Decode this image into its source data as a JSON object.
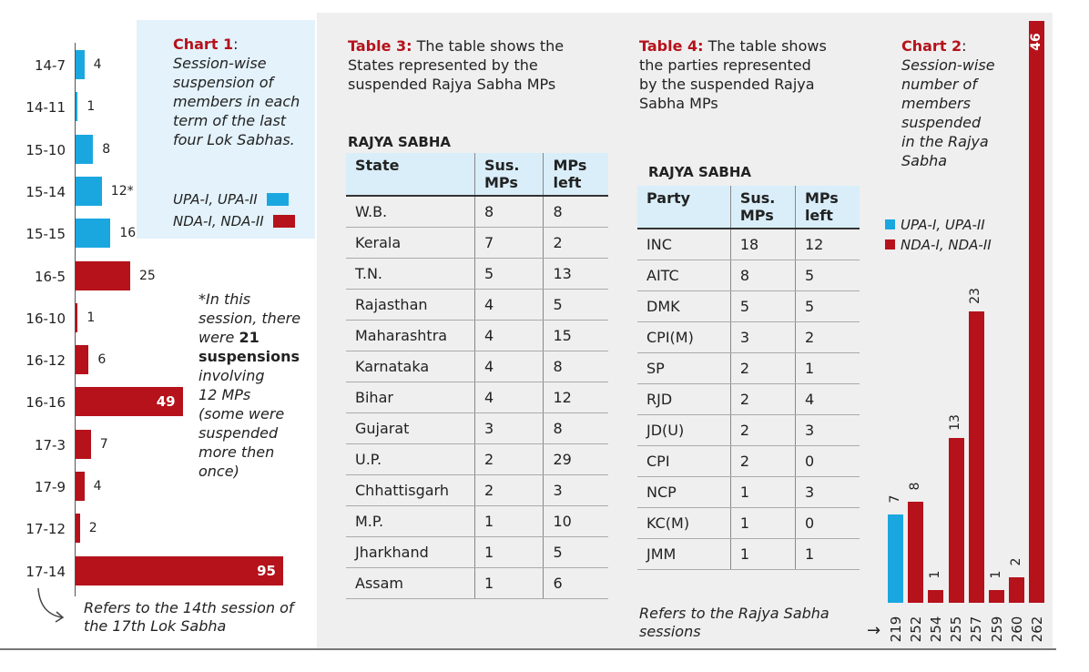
{
  "colors": {
    "upa": "#1aa7e0",
    "nda": "#b5121b"
  },
  "chart1": {
    "caption_title": "Chart 1",
    "caption_colon": ":",
    "caption_lines": [
      "Session-wise",
      "suspension of",
      "members in each",
      "term of the last",
      "four Lok Sabhas."
    ],
    "legend": [
      "UPA-I, UPA-II",
      "NDA-I, NDA-II"
    ],
    "note_lines": [
      "*In this",
      "session, there",
      "were ",
      "21",
      "suspensions",
      "involving",
      "12 MPs",
      "(some were",
      "suspended",
      "more then",
      "once)"
    ],
    "footnote_lines": [
      "Refers to the 14th session of",
      "the 17th Lok Sabha"
    ]
  },
  "chart2": {
    "caption_title": "Chart 2",
    "caption_colon": ":",
    "caption_lines": [
      "Session-wise",
      "number of",
      "members",
      "suspended",
      "in the Rajya",
      "Sabha"
    ],
    "legend": [
      "UPA-I, UPA-II",
      "NDA-I, NDA-II"
    ]
  },
  "table3": {
    "title": "Table 3:",
    "caption_lines": [
      "The table shows the",
      "States represented by the",
      "suspended Rajya Sabha MPs"
    ],
    "section": "RAJYA SABHA",
    "headers": [
      "State",
      "Sus. MPs",
      "MPs left"
    ],
    "rows": [
      [
        "W.B.",
        "8",
        "8"
      ],
      [
        "Kerala",
        "7",
        "2"
      ],
      [
        "T.N.",
        "5",
        "13"
      ],
      [
        "Rajasthan",
        "4",
        "5"
      ],
      [
        "Maharashtra",
        "4",
        "15"
      ],
      [
        "Karnataka",
        "4",
        "8"
      ],
      [
        "Bihar",
        "4",
        "12"
      ],
      [
        "Gujarat",
        "3",
        "8"
      ],
      [
        "U.P.",
        "2",
        "29"
      ],
      [
        "Chhattisgarh",
        "2",
        "3"
      ],
      [
        "M.P.",
        "1",
        "10"
      ],
      [
        "Jharkhand",
        "1",
        "5"
      ],
      [
        "Assam",
        "1",
        "6"
      ]
    ]
  },
  "table4": {
    "title": "Table 4:",
    "caption_lines": [
      "The table shows",
      "the parties represented",
      "by the suspended Rajya",
      "Sabha MPs"
    ],
    "section": "RAJYA SABHA",
    "headers": [
      "Party",
      "Sus. MPs",
      "MPs left"
    ],
    "rows": [
      [
        "INC",
        "18",
        "12"
      ],
      [
        "AITC",
        "8",
        "5"
      ],
      [
        "DMK",
        "5",
        "5"
      ],
      [
        "CPI(M)",
        "3",
        "2"
      ],
      [
        "SP",
        "2",
        "1"
      ],
      [
        "RJD",
        "2",
        "4"
      ],
      [
        "JD(U)",
        "2",
        "3"
      ],
      [
        "CPI",
        "2",
        "0"
      ],
      [
        "NCP",
        "1",
        "3"
      ],
      [
        "KC(M)",
        "1",
        "0"
      ],
      [
        "JMM",
        "1",
        "1"
      ]
    ],
    "footnote_lines": [
      "Refers to the Rajya Sabha",
      "sessions"
    ]
  },
  "chart_data": [
    {
      "type": "bar",
      "orientation": "horizontal",
      "categories": [
        "14-7",
        "14-11",
        "15-10",
        "15-14",
        "15-15",
        "16-5",
        "16-10",
        "16-12",
        "16-16",
        "17-3",
        "17-9",
        "17-12",
        "17-14"
      ],
      "values": [
        4,
        1,
        8,
        12,
        16,
        25,
        1,
        6,
        49,
        7,
        4,
        2,
        95
      ],
      "labels": [
        "4",
        "1",
        "8",
        "12*",
        "16",
        "25",
        "1",
        "6",
        "49",
        "7",
        "4",
        "2",
        "95"
      ],
      "group": [
        "UPA",
        "UPA",
        "UPA",
        "UPA",
        "UPA",
        "NDA",
        "NDA",
        "NDA",
        "NDA",
        "NDA",
        "NDA",
        "NDA",
        "NDA"
      ],
      "title": "Chart 1"
    },
    {
      "type": "bar",
      "orientation": "vertical",
      "categories": [
        "219",
        "252",
        "254",
        "255",
        "257",
        "259",
        "260",
        "262"
      ],
      "values": [
        7,
        8,
        1,
        13,
        23,
        1,
        2,
        46
      ],
      "labels": [
        "7",
        "8",
        "1",
        "13",
        "23",
        "1",
        "2",
        "46"
      ],
      "group": [
        "UPA",
        "NDA",
        "NDA",
        "NDA",
        "NDA",
        "NDA",
        "NDA",
        "NDA"
      ],
      "title": "Chart 2"
    }
  ]
}
